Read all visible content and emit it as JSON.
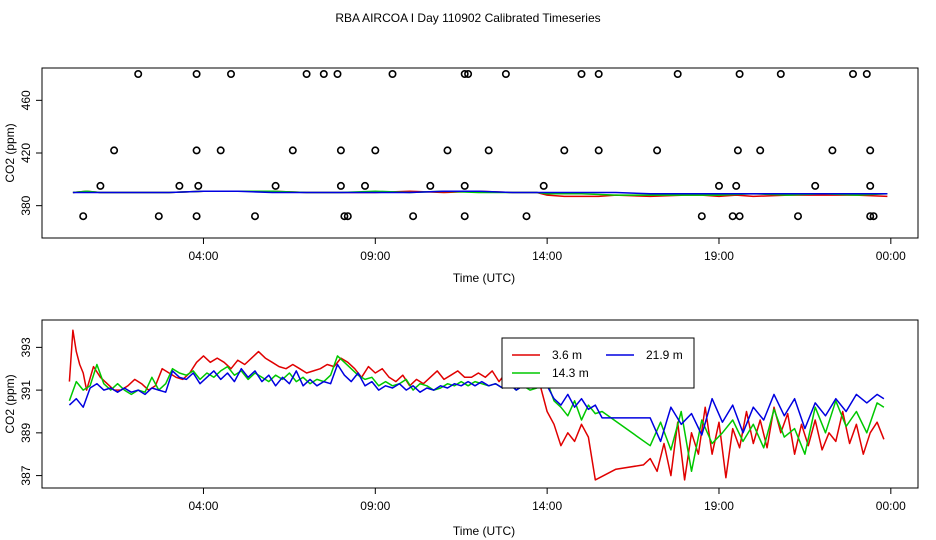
{
  "figure": {
    "title": "RBA AIRCOA I  Day 110902  Calibrated Timeseries"
  },
  "colors": {
    "s36": "#e00000",
    "s143": "#00c800",
    "s219": "#0000e0",
    "axis": "#000000"
  },
  "chart_data": [
    {
      "type": "scatter",
      "panel": "top",
      "xlabel": "Time (UTC)",
      "ylabel": "CO2 (ppm)",
      "xlim": [
        0.0,
        24.5
      ],
      "ylim": [
        360,
        480
      ],
      "xticks": [
        4,
        9,
        14,
        19,
        24
      ],
      "xtick_labels": [
        "04:00",
        "09:00",
        "14:00",
        "19:00",
        "00:00"
      ],
      "yticks": [
        380,
        420,
        460
      ],
      "ytick_labels": [
        "380",
        "420",
        "460"
      ],
      "series": [
        {
          "key": "s36",
          "x": [
            0.2,
            0.6,
            1,
            2,
            3,
            4,
            5,
            6,
            7,
            8,
            9,
            10,
            11,
            12,
            13,
            13.7,
            14,
            14.5,
            15,
            15.5,
            16,
            17,
            18,
            18.5,
            19,
            19.5,
            20,
            21,
            22,
            23,
            23.9
          ],
          "y": [
            390,
            391,
            390,
            390,
            390,
            391,
            391,
            391,
            390,
            390,
            390,
            391,
            390,
            391,
            390,
            390,
            388,
            387,
            387,
            387,
            388,
            387,
            388,
            388,
            387,
            388,
            387,
            388,
            388,
            388,
            387
          ]
        },
        {
          "key": "s143",
          "x": [
            0.2,
            0.6,
            1,
            2,
            3,
            4,
            5,
            6,
            7,
            8,
            9,
            10,
            11,
            12,
            13,
            13.7,
            14,
            15,
            16,
            17,
            18,
            19,
            20,
            21,
            22,
            23,
            23.9
          ],
          "y": [
            390,
            391,
            390,
            390,
            390,
            391,
            391,
            391,
            390,
            390,
            391,
            390,
            391,
            390,
            390,
            390,
            389,
            389,
            388,
            388,
            388,
            388,
            389,
            388,
            389,
            388,
            389
          ]
        },
        {
          "key": "s219",
          "x": [
            0.2,
            1,
            2,
            3,
            4,
            5,
            6,
            7,
            8,
            9,
            10,
            11,
            12,
            13,
            13.7,
            14,
            15,
            16,
            17,
            18,
            19,
            20,
            21,
            22,
            23,
            23.9
          ],
          "y": [
            390,
            390,
            390,
            390,
            391,
            391,
            390,
            390,
            390,
            390,
            390,
            391,
            391,
            390,
            390,
            390,
            390,
            390,
            389,
            389,
            389,
            389,
            389,
            389,
            389,
            389
          ]
        },
        {
          "key": "points",
          "x": [
            0.5,
            2.1,
            1.4,
            1.0,
            2.7,
            3.3,
            3.8,
            3.85,
            3.8,
            3.8,
            4.5,
            4.8,
            5.5,
            6.1,
            6.6,
            7.0,
            7.5,
            7.9,
            8.0,
            8.0,
            8.1,
            8.2,
            8.7,
            9.0,
            9.5,
            10.1,
            10.6,
            11.1,
            11.6,
            11.6,
            11.6,
            11.7,
            12.3,
            12.8,
            13.4,
            13.9,
            14.5,
            15.0,
            15.5,
            15.5,
            17.2,
            17.8,
            18.5,
            19.0,
            19.4,
            19.5,
            19.55,
            19.6,
            19.6,
            20.2,
            20.8,
            21.3,
            21.8,
            22.3,
            22.9,
            23.3,
            23.4,
            23.4,
            23.4,
            23.5
          ],
          "y": [
            372,
            480,
            422,
            395,
            372,
            395,
            372,
            395,
            422,
            480,
            422,
            480,
            372,
            395,
            422,
            480,
            480,
            480,
            422,
            395,
            372,
            372,
            395,
            422,
            480,
            372,
            395,
            422,
            480,
            395,
            372,
            480,
            422,
            480,
            372,
            395,
            422,
            480,
            480,
            422,
            422,
            480,
            372,
            395,
            372,
            395,
            422,
            480,
            372,
            422,
            480,
            372,
            395,
            422,
            480,
            480,
            422,
            395,
            372,
            372
          ]
        }
      ]
    },
    {
      "type": "line",
      "panel": "bottom",
      "xlabel": "Time (UTC)",
      "ylabel": "CO2 (ppm)",
      "xlim": [
        0.0,
        24.5
      ],
      "ylim": [
        386.7,
        394.0
      ],
      "xticks": [
        4,
        9,
        14,
        19,
        24
      ],
      "xtick_labels": [
        "04:00",
        "09:00",
        "14:00",
        "19:00",
        "00:00"
      ],
      "yticks": [
        387,
        389,
        391,
        393
      ],
      "ytick_labels": [
        "387",
        "389",
        "391",
        "393"
      ],
      "legend": {
        "position": "top-right",
        "entries": [
          {
            "key": "s36",
            "label": "3.6 m"
          },
          {
            "key": "s219",
            "label": "21.9 m"
          },
          {
            "key": "s143",
            "label": "14.3 m"
          }
        ]
      },
      "series": [
        {
          "key": "s36",
          "x": [
            0.1,
            0.2,
            0.3,
            0.4,
            0.5,
            0.6,
            0.8,
            1.0,
            1.2,
            1.4,
            1.6,
            1.8,
            2.0,
            2.2,
            2.4,
            2.6,
            2.8,
            3.0,
            3.2,
            3.4,
            3.6,
            3.8,
            4.0,
            4.2,
            4.4,
            4.6,
            4.8,
            5.0,
            5.2,
            5.4,
            5.6,
            5.8,
            6.0,
            6.2,
            6.4,
            6.6,
            6.8,
            7.0,
            7.2,
            7.4,
            7.6,
            7.8,
            8.0,
            8.2,
            8.4,
            8.6,
            8.8,
            9.0,
            9.2,
            9.4,
            9.6,
            9.8,
            10.0,
            10.2,
            10.4,
            10.6,
            10.8,
            11.0,
            11.2,
            11.4,
            11.6,
            11.8,
            12.0,
            12.2,
            12.4,
            12.6,
            12.8,
            13.0,
            13.2,
            13.4,
            13.6,
            13.8,
            14.0,
            14.2,
            14.4,
            14.6,
            14.8,
            15.0,
            15.2,
            15.4,
            16.0,
            16.8,
            17.0,
            17.2,
            17.4,
            17.6,
            17.8,
            18.0,
            18.2,
            18.4,
            18.6,
            18.8,
            19.0,
            19.2,
            19.4,
            19.6,
            19.8,
            20.0,
            20.2,
            20.4,
            20.6,
            20.8,
            21.0,
            21.2,
            21.4,
            21.6,
            21.8,
            22.0,
            22.2,
            22.4,
            22.6,
            22.8,
            23.0,
            23.2,
            23.4,
            23.6,
            23.8
          ],
          "y": [
            391.4,
            393.8,
            392.8,
            392.2,
            391.8,
            391.0,
            392.1,
            391.6,
            391.3,
            391.0,
            391.0,
            391.2,
            391.5,
            391.3,
            391.0,
            391.2,
            392.0,
            391.8,
            391.6,
            391.5,
            391.8,
            392.3,
            392.6,
            392.3,
            392.5,
            392.3,
            392.0,
            392.4,
            392.2,
            392.5,
            392.8,
            392.5,
            392.3,
            392.1,
            392.0,
            392.2,
            392.0,
            391.8,
            391.9,
            392.0,
            392.2,
            392.1,
            392.5,
            392.3,
            392.0,
            391.6,
            392.1,
            391.8,
            392.0,
            391.6,
            391.4,
            391.7,
            391.2,
            391.5,
            391.3,
            391.6,
            391.9,
            391.5,
            391.7,
            391.9,
            391.6,
            391.6,
            391.8,
            391.6,
            391.9,
            391.4,
            391.8,
            391.5,
            391.6,
            391.9,
            391.7,
            391.2,
            390.0,
            389.4,
            388.4,
            389.0,
            388.6,
            389.4,
            388.8,
            386.8,
            387.3,
            387.5,
            387.8,
            387.2,
            388.5,
            387.0,
            389.5,
            386.8,
            389.0,
            388.0,
            390.2,
            388.0,
            389.5,
            386.9,
            389.2,
            388.3,
            390.0,
            388.5,
            389.6,
            388.3,
            390.2,
            389.0,
            389.9,
            388.0,
            389.4,
            388.4,
            389.6,
            388.2,
            389.0,
            388.6,
            390.0,
            388.5,
            389.4,
            388.0,
            389.0,
            389.5,
            388.7
          ]
        },
        {
          "key": "s143",
          "x": [
            0.1,
            0.3,
            0.5,
            0.7,
            0.9,
            1.1,
            1.3,
            1.5,
            1.7,
            1.9,
            2.1,
            2.3,
            2.5,
            2.7,
            2.9,
            3.1,
            3.3,
            3.5,
            3.7,
            3.9,
            4.1,
            4.3,
            4.5,
            4.7,
            4.9,
            5.1,
            5.3,
            5.5,
            5.7,
            5.9,
            6.1,
            6.3,
            6.5,
            6.7,
            6.9,
            7.1,
            7.3,
            7.5,
            7.7,
            7.9,
            8.1,
            8.3,
            8.5,
            8.7,
            8.9,
            9.1,
            9.3,
            9.5,
            9.7,
            9.9,
            10.1,
            10.3,
            10.5,
            10.7,
            10.9,
            11.1,
            11.3,
            11.5,
            11.7,
            11.9,
            12.1,
            12.3,
            12.5,
            12.7,
            12.9,
            13.1,
            13.3,
            13.5,
            13.7,
            14.0,
            14.2,
            14.4,
            14.6,
            14.8,
            15.0,
            15.2,
            15.4,
            15.6,
            17.0,
            17.3,
            17.6,
            17.9,
            18.2,
            18.5,
            18.8,
            19.1,
            19.4,
            19.7,
            20.0,
            20.3,
            20.6,
            20.9,
            21.2,
            21.5,
            21.8,
            22.1,
            22.4,
            22.7,
            23.0,
            23.3,
            23.6,
            23.8
          ],
          "y": [
            390.5,
            391.4,
            391.0,
            391.2,
            392.2,
            391.3,
            391.0,
            391.3,
            391.0,
            390.8,
            391.0,
            390.9,
            391.6,
            391.0,
            391.3,
            392.0,
            391.8,
            391.7,
            391.9,
            391.5,
            391.8,
            391.6,
            391.9,
            392.1,
            391.7,
            391.9,
            391.5,
            391.8,
            391.6,
            391.4,
            391.7,
            391.5,
            391.8,
            391.4,
            391.6,
            391.3,
            391.5,
            391.4,
            391.7,
            392.6,
            392.3,
            392.0,
            391.7,
            391.5,
            391.6,
            391.2,
            391.4,
            391.2,
            391.3,
            391.5,
            391.0,
            391.3,
            391.2,
            391.0,
            391.1,
            391.3,
            391.2,
            391.4,
            391.2,
            391.4,
            391.3,
            391.2,
            391.3,
            391.1,
            391.3,
            391.0,
            391.2,
            391.0,
            391.1,
            391.4,
            390.5,
            390.2,
            389.8,
            390.5,
            389.6,
            390.3,
            389.9,
            390.0,
            388.4,
            389.5,
            388.2,
            390.0,
            387.2,
            389.6,
            388.5,
            389.0,
            389.6,
            388.6,
            389.4,
            388.3,
            390.1,
            388.8,
            389.2,
            388.0,
            390.2,
            389.0,
            390.5,
            389.3,
            390.0,
            389.0,
            390.4,
            390.2
          ]
        },
        {
          "key": "s219",
          "x": [
            0.1,
            0.3,
            0.5,
            0.7,
            0.9,
            1.1,
            1.3,
            1.5,
            1.7,
            1.9,
            2.1,
            2.3,
            2.5,
            2.7,
            2.9,
            3.1,
            3.3,
            3.5,
            3.7,
            3.9,
            4.1,
            4.3,
            4.5,
            4.7,
            4.9,
            5.1,
            5.3,
            5.5,
            5.7,
            5.9,
            6.1,
            6.3,
            6.5,
            6.7,
            6.9,
            7.1,
            7.3,
            7.5,
            7.7,
            7.9,
            8.1,
            8.3,
            8.5,
            8.7,
            8.9,
            9.1,
            9.3,
            9.5,
            9.7,
            9.9,
            10.1,
            10.3,
            10.5,
            10.7,
            10.9,
            11.1,
            11.3,
            11.5,
            11.7,
            11.9,
            12.1,
            12.3,
            12.5,
            12.7,
            12.9,
            13.1,
            13.3,
            13.5,
            13.7,
            14.0,
            14.2,
            14.4,
            14.6,
            14.8,
            15.0,
            15.2,
            15.4,
            15.6,
            17.0,
            17.3,
            17.6,
            17.9,
            18.2,
            18.5,
            18.8,
            19.1,
            19.4,
            19.7,
            20.0,
            20.3,
            20.6,
            20.9,
            21.2,
            21.5,
            21.8,
            22.1,
            22.4,
            22.7,
            23.0,
            23.3,
            23.6,
            23.8
          ],
          "y": [
            390.3,
            390.6,
            390.2,
            391.1,
            391.3,
            391.0,
            391.1,
            390.9,
            391.1,
            390.9,
            391.0,
            390.8,
            391.1,
            391.0,
            390.9,
            391.9,
            391.6,
            391.5,
            391.8,
            391.3,
            391.6,
            391.9,
            391.5,
            391.8,
            391.4,
            392.0,
            391.6,
            391.9,
            391.4,
            391.7,
            391.2,
            391.6,
            391.3,
            391.9,
            391.2,
            391.5,
            391.2,
            391.4,
            391.3,
            392.2,
            391.7,
            391.4,
            391.8,
            391.2,
            391.4,
            391.0,
            391.2,
            391.1,
            391.3,
            391.0,
            391.2,
            390.9,
            391.1,
            391.0,
            391.2,
            391.1,
            391.3,
            391.2,
            391.4,
            391.2,
            391.4,
            391.2,
            391.3,
            391.1,
            391.3,
            391.0,
            391.2,
            391.1,
            391.6,
            391.2,
            390.6,
            390.3,
            390.8,
            390.2,
            390.6,
            390.1,
            390.3,
            389.7,
            389.7,
            388.6,
            390.2,
            389.4,
            389.9,
            388.9,
            390.6,
            389.5,
            390.3,
            389.0,
            390.2,
            389.6,
            390.8,
            389.8,
            390.6,
            389.2,
            390.4,
            389.8,
            390.6,
            390.0,
            390.8,
            390.4,
            390.8,
            390.6
          ]
        }
      ]
    }
  ]
}
